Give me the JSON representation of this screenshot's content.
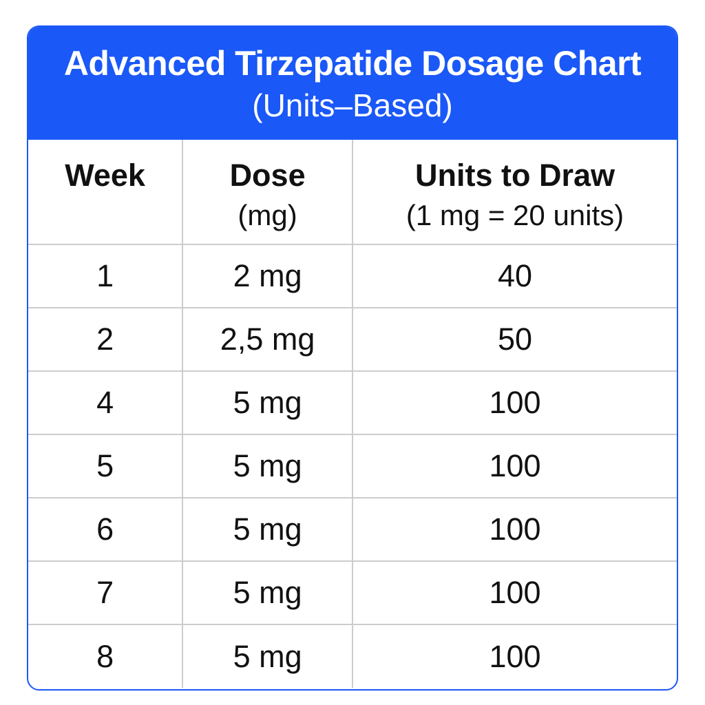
{
  "card": {
    "title_line1": "Advanced Tirzepatide Dosage Chart",
    "title_line2": "(Units–Based)",
    "colors": {
      "header_blue": "#1a58f7",
      "border_blue": "#1a58f7",
      "divider_gray": "#cccccc",
      "text_dark": "#111111",
      "text_light": "#ffffff"
    }
  },
  "table": {
    "columns": [
      {
        "label": "Week",
        "sublabel": ""
      },
      {
        "label": "Dose",
        "sublabel": "(mg)"
      },
      {
        "label": "Units to Draw",
        "sublabel": "(1 mg = 20 units)"
      }
    ],
    "rows": [
      [
        "1",
        "2 mg",
        "40"
      ],
      [
        "2",
        "2,5 mg",
        "50"
      ],
      [
        "4",
        "5 mg",
        "100"
      ],
      [
        "5",
        "5 mg",
        "100"
      ],
      [
        "6",
        "5 mg",
        "100"
      ],
      [
        "7",
        "5 mg",
        "100"
      ],
      [
        "8",
        "5 mg",
        "100"
      ]
    ]
  },
  "chart_data": {
    "type": "table",
    "title": "Advanced Tirzepatide Dosage Chart (Units–Based)",
    "note": "1 mg = 20 units",
    "columns": [
      "Week",
      "Dose (mg)",
      "Units to Draw"
    ],
    "rows": [
      {
        "week": 1,
        "dose_mg": 2,
        "units": 40
      },
      {
        "week": 2,
        "dose_mg": 2.5,
        "units": 50
      },
      {
        "week": 4,
        "dose_mg": 5,
        "units": 100
      },
      {
        "week": 5,
        "dose_mg": 5,
        "units": 100
      },
      {
        "week": 6,
        "dose_mg": 5,
        "units": 100
      },
      {
        "week": 7,
        "dose_mg": 5,
        "units": 100
      },
      {
        "week": 8,
        "dose_mg": 5,
        "units": 100
      }
    ]
  }
}
